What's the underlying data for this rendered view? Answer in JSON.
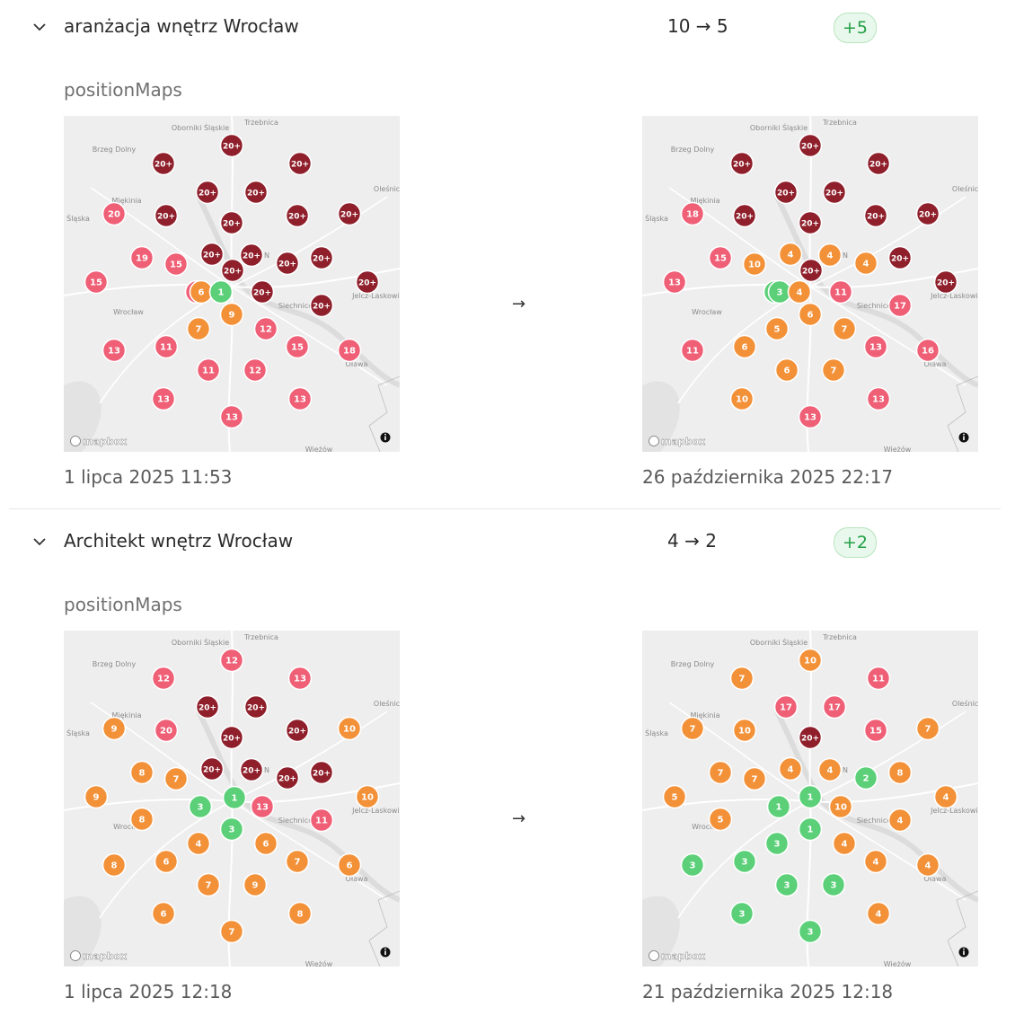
{
  "keywords": [
    {
      "name": "aranżacja wnętrz Wrocław",
      "change_text": "10 → 5",
      "badge": "+5",
      "maps_label": "positionMaps",
      "arrow": "→",
      "before": {
        "date": "1 lipca 2025 11:53",
        "markers": [
          "20+",
          "20+",
          "20+",
          "20+",
          "20+",
          "20",
          "20+",
          "20+",
          "20+",
          "20+",
          "19",
          "15",
          "20+",
          "20+",
          "20+",
          "20+",
          "15",
          "20+",
          "20+",
          "15",
          "6",
          "1",
          "20+",
          "20+",
          "9",
          "7",
          "12",
          "13",
          "11",
          "15",
          "18",
          "11",
          "12",
          "13",
          "13",
          "13"
        ]
      },
      "after": {
        "date": "26 października 2025 22:17",
        "markers": [
          "20+",
          "20+",
          "20+",
          "20+",
          "20+",
          "18",
          "20+",
          "20+",
          "20+",
          "20+",
          "15",
          "10",
          "4",
          "4",
          "4",
          "20+",
          "13",
          "20+",
          "11",
          "2",
          "3",
          "4",
          "20+",
          "17",
          "6",
          "5",
          "7",
          "11",
          "6",
          "13",
          "16",
          "6",
          "7",
          "10",
          "13",
          "13"
        ]
      }
    },
    {
      "name": "Architekt wnętrz Wrocław",
      "change_text": "4 → 2",
      "badge": "+2",
      "maps_label": "positionMaps",
      "arrow": "→",
      "before": {
        "date": "1 lipca 2025 12:18",
        "markers": [
          "12",
          "12",
          "13",
          "20+",
          "20+",
          "9",
          "20",
          "20+",
          "20+",
          "10",
          "8",
          "7",
          "20+",
          "20+",
          "20+",
          "20+",
          "9",
          "10",
          "8",
          "3",
          "1",
          "13",
          "11",
          "3",
          "4",
          "6",
          "8",
          "6",
          "7",
          "6",
          "7",
          "9",
          "6",
          "8",
          "7"
        ]
      },
      "after": {
        "date": "21 października 2025 12:18",
        "markers": [
          "10",
          "7",
          "11",
          "17",
          "17",
          "7",
          "10",
          "20+",
          "15",
          "7",
          "7",
          "7",
          "4",
          "4",
          "2",
          "8",
          "5",
          "4",
          "5",
          "1",
          "1",
          "10",
          "4",
          "1",
          "3",
          "4",
          "3",
          "3",
          "4",
          "4",
          "3",
          "3",
          "3",
          "4",
          "3"
        ]
      }
    }
  ],
  "map": {
    "places": [
      "Trzebnica",
      "Oborniki Śląskie",
      "Brzeg Dolny",
      "Oleśnica",
      "Miękinia",
      "Śląska",
      "N",
      "Siechnice",
      "Jelcz-Laskowice",
      "Wrocław",
      "Oława",
      "Wieżów"
    ],
    "attribution": "mapbox",
    "info_icon": "info-icon"
  },
  "colors": {
    "rank_1_3": "#5bd078",
    "rank_4_10": "#f39138",
    "rank_11_20": "#ef5f76",
    "rank_20plus": "#8e1f2b",
    "badge_text": "#23a046"
  },
  "icons": {
    "collapse": "chevron-down-icon"
  }
}
